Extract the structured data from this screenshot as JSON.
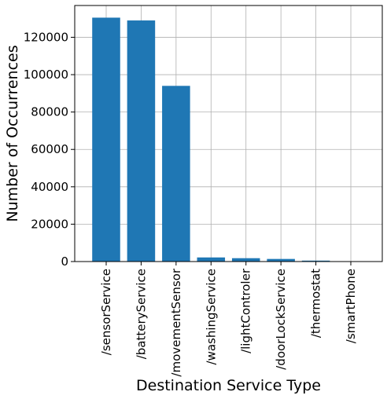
{
  "chart_data": {
    "type": "bar",
    "title": "",
    "xlabel": "Destination Service Type",
    "ylabel": "Number of Occurrences",
    "categories": [
      "/sensorService",
      "/batteryService",
      "/movementSensor",
      "/washingService",
      "/lightControler",
      "/doorLockService",
      "/thermostat",
      "/smartPhone"
    ],
    "values": [
      130500,
      129000,
      94000,
      2200,
      1800,
      1400,
      500,
      150
    ],
    "ylim": [
      0,
      137000
    ],
    "yticks": [
      0,
      20000,
      40000,
      60000,
      80000,
      100000,
      120000
    ],
    "grid": true,
    "legend": "none",
    "bar_color": "#1f77b4",
    "grid_color": "#b0b0b0"
  }
}
